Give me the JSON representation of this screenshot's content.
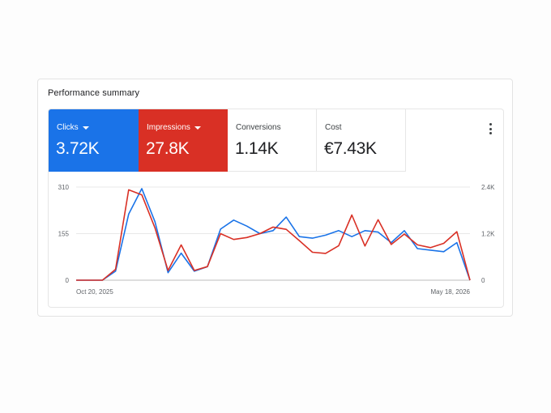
{
  "card": {
    "title": "Performance summary"
  },
  "metrics": [
    {
      "label": "Clicks",
      "value": "3.72K",
      "dropdown": true,
      "color": "#1a73e8"
    },
    {
      "label": "Impressions",
      "value": "27.8K",
      "dropdown": true,
      "color": "#d93025"
    },
    {
      "label": "Conversions",
      "value": "1.14K",
      "dropdown": false
    },
    {
      "label": "Cost",
      "value": "€7.43K",
      "dropdown": false
    }
  ],
  "more_menu": {
    "icon": "more-vert-icon"
  },
  "chart_data": {
    "type": "line",
    "x_labels": {
      "start": "Oct 20, 2025",
      "end": "May 18, 2026"
    },
    "left_axis": {
      "ticks": [
        "310",
        "155",
        "0"
      ],
      "ylim": [
        0,
        310
      ]
    },
    "right_axis": {
      "ticks": [
        "2.4K",
        "1.2K",
        "0"
      ],
      "ylim": [
        0,
        2400
      ]
    },
    "grid": true,
    "series": [
      {
        "name": "Clicks",
        "axis": "left",
        "color": "#1a73e8",
        "values": [
          0,
          0,
          0,
          30,
          220,
          305,
          195,
          25,
          90,
          30,
          45,
          170,
          200,
          180,
          155,
          165,
          210,
          145,
          140,
          150,
          165,
          145,
          165,
          160,
          125,
          165,
          105,
          100,
          95,
          125,
          0
        ]
      },
      {
        "name": "Impressions",
        "axis": "right",
        "color": "#d93025",
        "values": [
          0,
          0,
          0,
          280,
          2330,
          2200,
          1350,
          250,
          910,
          250,
          350,
          1200,
          1050,
          1100,
          1200,
          1370,
          1310,
          1020,
          720,
          690,
          890,
          1680,
          880,
          1560,
          920,
          1190,
          910,
          840,
          950,
          1250,
          0
        ]
      }
    ]
  }
}
